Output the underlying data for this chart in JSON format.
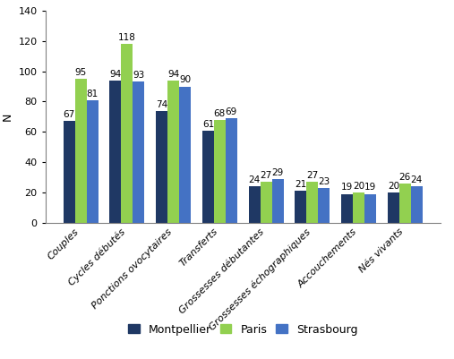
{
  "categories": [
    "Couples",
    "Cycles débutés",
    "Ponctions ovocytaires",
    "Transferts",
    "Grossesses débutantes",
    "Grossesses échographiques",
    "Accouchements",
    "Nés vivants"
  ],
  "series": {
    "Montpellier": [
      67,
      94,
      74,
      61,
      24,
      21,
      19,
      20
    ],
    "Paris": [
      95,
      118,
      94,
      68,
      27,
      27,
      20,
      26
    ],
    "Strasbourg": [
      81,
      93,
      90,
      69,
      29,
      23,
      19,
      24
    ]
  },
  "colors": {
    "Montpellier": "#1f3864",
    "Paris": "#92d050",
    "Strasbourg": "#4472c4"
  },
  "ylabel": "N",
  "ylim": [
    0,
    140
  ],
  "yticks": [
    0,
    20,
    40,
    60,
    80,
    100,
    120,
    140
  ],
  "bar_width": 0.25,
  "label_fontsize": 7.5,
  "axis_fontsize": 9,
  "legend_fontsize": 9,
  "tick_label_fontsize": 8
}
